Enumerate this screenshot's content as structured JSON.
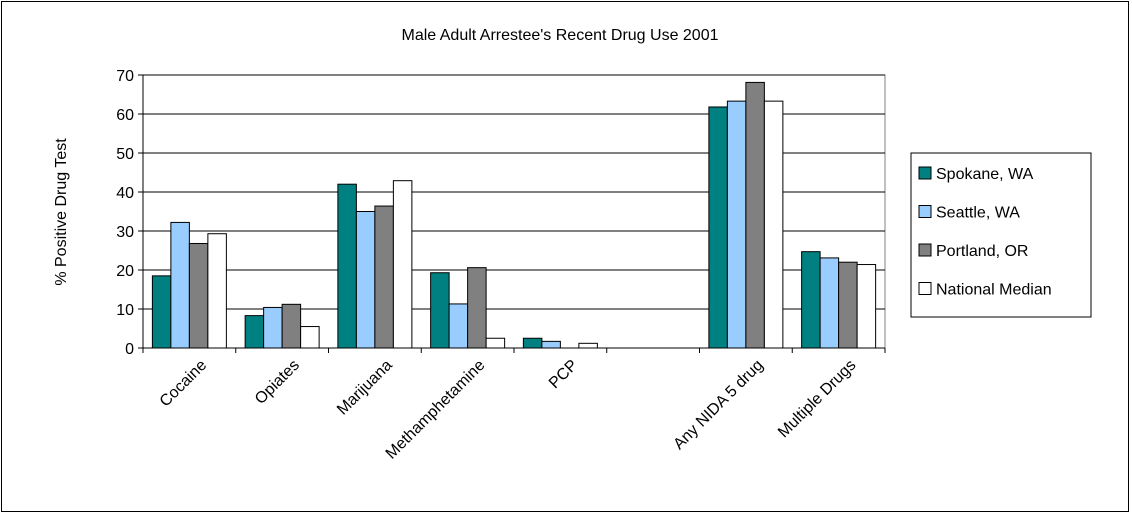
{
  "chart_data": {
    "type": "bar",
    "title": "Male Adult Arrestee's Recent Drug Use 2001",
    "ylabel": "% Positive Drug Test",
    "xlabel": "",
    "ylim": [
      0,
      70
    ],
    "yticks": [
      0,
      10,
      20,
      30,
      40,
      50,
      60,
      70
    ],
    "grid": true,
    "legend": "right",
    "categories": [
      "Cocaine",
      "Opiates",
      "Marijuana",
      "Methamphetamine",
      "PCP",
      "",
      "Any NIDA 5 drug",
      "Multiple Drugs"
    ],
    "series": [
      {
        "name": "Spokane, WA",
        "color": "#008080",
        "values": [
          18.5,
          8.3,
          42.0,
          19.3,
          2.5,
          null,
          61.8,
          24.7
        ]
      },
      {
        "name": "Seattle, WA",
        "color": "#99ccff",
        "values": [
          32.2,
          10.4,
          35.0,
          11.3,
          1.7,
          null,
          63.3,
          23.1
        ]
      },
      {
        "name": "Portland, OR",
        "color": "#808080",
        "values": [
          26.8,
          11.2,
          36.4,
          20.6,
          null,
          null,
          68.1,
          22.0
        ]
      },
      {
        "name": "National Median",
        "color": "#ffffff",
        "values": [
          29.3,
          5.5,
          42.9,
          2.5,
          1.2,
          null,
          63.3,
          21.4
        ]
      }
    ]
  }
}
